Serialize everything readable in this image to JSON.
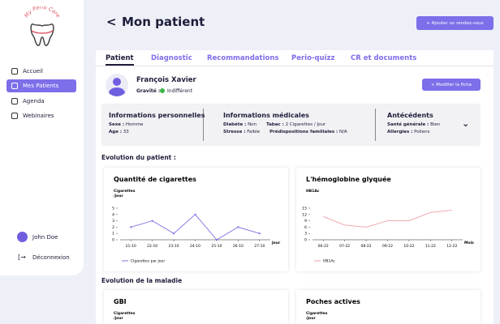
{
  "sidebar": {
    "logo": "My Perio Care",
    "nav": [
      "Accueil",
      "Mes Patients",
      "Agenda",
      "Webinaires"
    ],
    "active": 1,
    "user": "John Doe",
    "logout": "Déconnexion"
  },
  "header": {
    "title": "Mon patient",
    "back": "<",
    "button": "+ Ajouter un rendez-vous"
  },
  "tabs": [
    "Patient",
    "Diagnostic",
    "Recommandations",
    "Perio-quizz",
    "CR et documents"
  ],
  "patient": {
    "name": "François Xavier",
    "gravity_label": "Gravité :",
    "gravity_value": "Indifférent",
    "edit_button": "+ Modifier la fiche"
  },
  "info": [
    {
      "title": "Informations personnelles",
      "rows": [
        [
          {
            "label": "Sexe :",
            "value": "Homme"
          }
        ],
        [
          {
            "label": "Age :",
            "value": "33"
          }
        ]
      ]
    },
    {
      "title": "Informations médicales",
      "rows": [
        [
          {
            "label": "Diabète :",
            "value": "Non"
          },
          {
            "label": "Tabac :",
            "value": "2 Cigarettes / Jour"
          }
        ],
        [
          {
            "label": "Stresse :",
            "value": "Faible"
          },
          {
            "label": "Prédispositions familiales :",
            "value": "N/A"
          }
        ]
      ]
    },
    {
      "title": "Antécédents",
      "rows": [
        [
          {
            "label": "Santé générale :",
            "value": "Bien"
          }
        ],
        [
          {
            "label": "Allergies :",
            "value": "Pollens"
          }
        ]
      ]
    }
  ],
  "section_patient": "Evolution du patient :",
  "section_disease": "Evolution de la maladie",
  "chart_data": [
    {
      "type": "line",
      "title": "Quantité de cigarettes",
      "ylabel": [
        "Cigarettes",
        "/jour"
      ],
      "xlabel": "Jour",
      "categories": [
        "21-10",
        "22-10",
        "23-10",
        "24-10",
        "25-10",
        "26-10",
        "27-10"
      ],
      "series": [
        {
          "name": "Cigarettes par jour",
          "color": "#7b74e0",
          "values": [
            2,
            3,
            1,
            4,
            0,
            2,
            1
          ]
        }
      ],
      "ylim": [
        0,
        5
      ],
      "yticks": [
        0,
        1,
        2,
        3,
        4,
        5
      ]
    },
    {
      "type": "line",
      "title": "L'hémoglobine glyquée",
      "ylabel": [
        "HB1Ac"
      ],
      "xlabel": "Mois",
      "categories": [
        "06-22",
        "07-22",
        "08-22",
        "09-22",
        "10-22",
        "11-22",
        "12-22"
      ],
      "series": [
        {
          "name": "HB1Ac",
          "color": "#f0a0a8",
          "values": [
            11,
            7,
            6,
            9,
            9,
            13,
            14
          ]
        }
      ],
      "ylim": [
        0,
        15
      ],
      "yticks": [
        0,
        3,
        6,
        9,
        12,
        15
      ]
    }
  ],
  "disease_cards": [
    {
      "title": "GBI",
      "ylabel": [
        "Cigarettes",
        "/jour"
      ]
    },
    {
      "title": "Poches actives",
      "ylabel": [
        "Cigarettes",
        "/jour"
      ]
    }
  ]
}
